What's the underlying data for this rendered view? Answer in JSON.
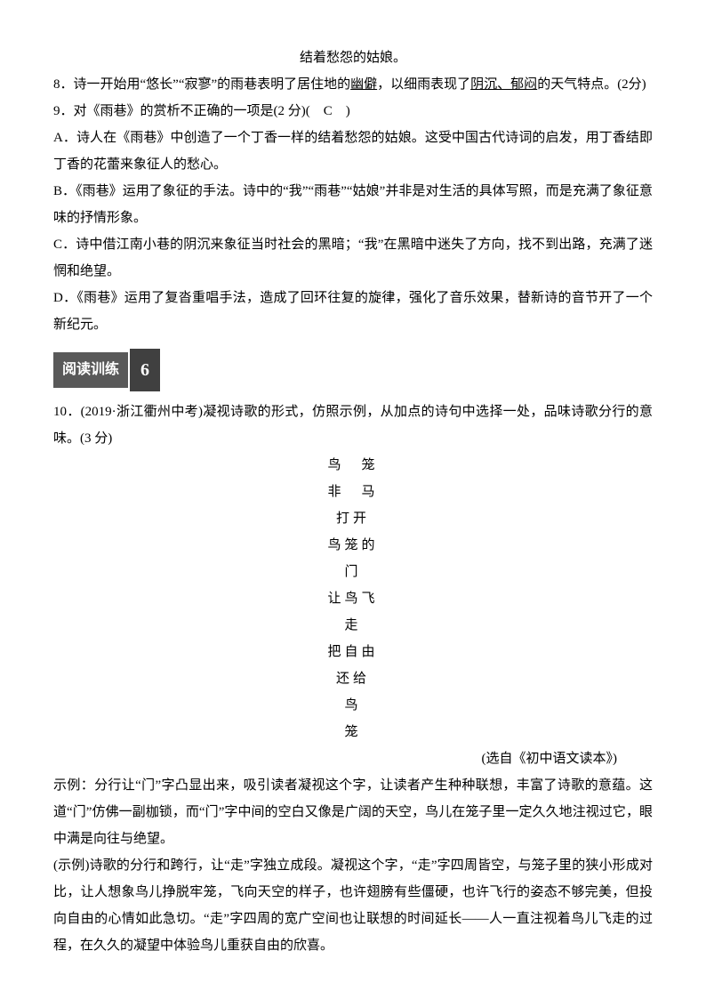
{
  "line0": "结着愁怨的姑娘。",
  "q8_prefix": "8．诗一开始用“悠长”“寂寥”的雨巷表明了居住地的",
  "q8_ans1": "幽僻",
  "q8_mid": "，以细雨表现了",
  "q8_ans2": "阴沉、郁闷",
  "q8_suffix": "的天气特点。(2分)",
  "q9_stem": "9．对《雨巷》的赏析不正确的一项是(2 分)(　C　)",
  "q9_a": "A．诗人在《雨巷》中创造了一个丁香一样的结着愁怨的姑娘。这受中国古代诗词的启发，用丁香结即丁香的花蕾来象征人的愁心。",
  "q9_b": "B．《雨巷》运用了象征的手法。诗中的“我”“雨巷”“姑娘”并非是对生活的具体写照，而是充满了象征意味的抒情形象。",
  "q9_c": "C．诗中借江南小巷的阴沉来象征当时社会的黑暗；“我”在黑暗中迷失了方向，找不到出路，充满了迷惘和绝望。",
  "q9_d": "D．《雨巷》运用了复沓重唱手法，造成了回环往复的旋律，强化了音乐效果，替新诗的音节开了一个新纪元。",
  "section_label": "阅读训练",
  "section_num": "6",
  "q10_stem": "10．(2019·浙江衢州中考)凝视诗歌的形式，仿照示例，从加点的诗句中选择一处，品味诗歌分行的意味。(3 分)",
  "poem": {
    "title": "鸟　笼",
    "author": "非　马",
    "l1": "打开",
    "l2": "鸟笼的",
    "l3": "门",
    "l4": "让鸟飞",
    "l5": "走",
    "l6": "把自由",
    "l7": "还给",
    "l8": "鸟",
    "l9": "笼"
  },
  "source": "(选自《初中语文读本》)",
  "example": "示例：分行让“门”字凸显出来，吸引读者凝视这个字，让读者产生种种联想，丰富了诗歌的意蕴。这道“门”仿佛一副枷锁，而“门”字中间的空白又像是广阔的天空，鸟儿在笼子里一定久久地注视过它，眼中满是向往与绝望。",
  "answer": "(示例)诗歌的分行和跨行，让“走”字独立成段。凝视这个字，“走”字四周皆空，与笼子里的狭小形成对比，让人想象鸟儿挣脱牢笼，飞向天空的样子，也许翅膀有些僵硬，也许飞行的姿态不够完美，但投向自由的心情如此急切。“走”字四周的宽广空间也让联想的时间延长——人一直注视着鸟儿飞走的过程，在久久的凝望中体验鸟儿重获自由的欣喜。"
}
